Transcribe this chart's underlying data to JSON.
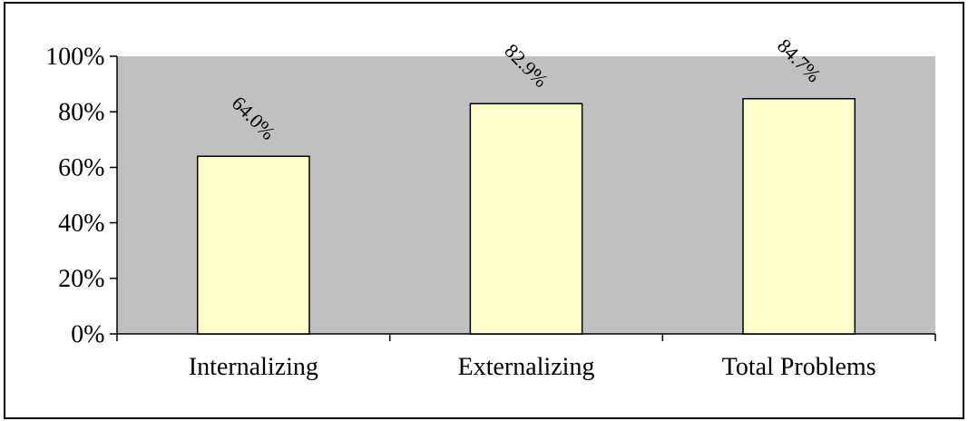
{
  "chart_data": {
    "type": "bar",
    "categories": [
      "Internalizing",
      "Externalizing",
      "Total Problems"
    ],
    "values": [
      64.0,
      82.9,
      84.7
    ],
    "value_labels": [
      "64.0%",
      "82.9%",
      "84.7%"
    ],
    "color": "#ffffcc",
    "ylim": [
      0,
      100
    ],
    "yticks": [
      {
        "value": 0,
        "label": "0%"
      },
      {
        "value": 20,
        "label": "20%"
      },
      {
        "value": 40,
        "label": "40%"
      },
      {
        "value": 60,
        "label": "60%"
      },
      {
        "value": 80,
        "label": "80%"
      },
      {
        "value": 100,
        "label": "100%"
      }
    ]
  }
}
